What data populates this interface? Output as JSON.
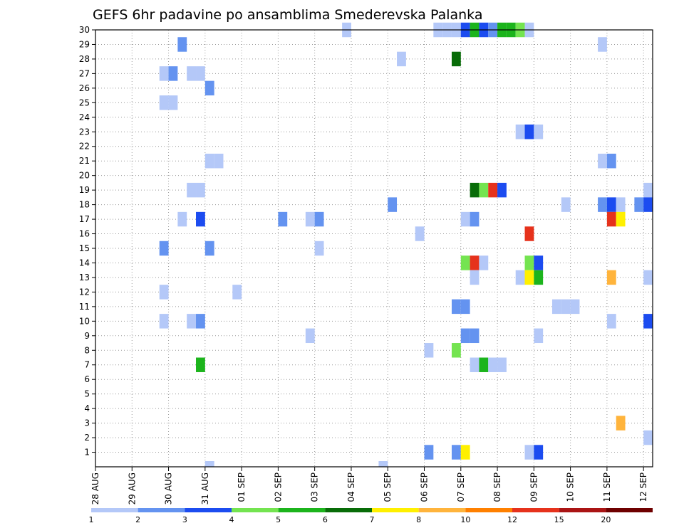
{
  "chart_data": {
    "type": "heatmap",
    "title": "GEFS 6hr padavine po ansamblima Smederevska Palanka",
    "x_tick_labels": [
      "28 AUG",
      "29 AUG",
      "30 AUG",
      "31 AUG",
      "01 SEP",
      "02 SEP",
      "03 SEP",
      "04 SEP",
      "05 SEP",
      "06 SEP",
      "07 SEP",
      "08 SEP",
      "09 SEP",
      "10 SEP",
      "11 SEP",
      "12 SEP"
    ],
    "x_range_days": [
      0,
      15.25
    ],
    "time_step_hours": 6,
    "members": [
      1,
      30
    ],
    "y_ticks": [
      1,
      2,
      3,
      4,
      5,
      6,
      7,
      8,
      9,
      10,
      11,
      12,
      13,
      14,
      15,
      16,
      17,
      18,
      19,
      20,
      21,
      22,
      23,
      24,
      25,
      26,
      27,
      28,
      29,
      30
    ],
    "grid": true,
    "legend": {
      "position": "bottom",
      "labels": [
        "1",
        "2",
        "3",
        "4",
        "5",
        "6",
        "7",
        "8",
        "10",
        "12",
        "15",
        "20"
      ],
      "colors": [
        "#b4c8f8",
        "#6493f0",
        "#1c4cf0",
        "#74e450",
        "#1cb41c",
        "#086c08",
        "#fff000",
        "#ffb43c",
        "#ff8000",
        "#e6321c",
        "#aa1414",
        "#6e0000"
      ]
    },
    "cells": [
      [
        6.75,
        30,
        1
      ],
      [
        9.25,
        30,
        1
      ],
      [
        9.5,
        30,
        1
      ],
      [
        9.75,
        30,
        1
      ],
      [
        10.0,
        30,
        3
      ],
      [
        10.25,
        30,
        5
      ],
      [
        10.5,
        30,
        3
      ],
      [
        10.75,
        30,
        2
      ],
      [
        11.0,
        30,
        5
      ],
      [
        11.25,
        30,
        5
      ],
      [
        11.5,
        30,
        4
      ],
      [
        11.75,
        30,
        1
      ],
      [
        2.25,
        29,
        2
      ],
      [
        13.75,
        29,
        1
      ],
      [
        8.25,
        28,
        1
      ],
      [
        9.75,
        28,
        6
      ],
      [
        1.75,
        27,
        1
      ],
      [
        2.0,
        27,
        2
      ],
      [
        2.5,
        27,
        1
      ],
      [
        2.75,
        27,
        1
      ],
      [
        3.0,
        26,
        2
      ],
      [
        1.75,
        25,
        1
      ],
      [
        2.0,
        25,
        1
      ],
      [
        11.5,
        23,
        1
      ],
      [
        11.75,
        23,
        3
      ],
      [
        12.0,
        23,
        1
      ],
      [
        3.0,
        21,
        1
      ],
      [
        3.25,
        21,
        1
      ],
      [
        13.75,
        21,
        1
      ],
      [
        14.0,
        21,
        2
      ],
      [
        10.25,
        19,
        6
      ],
      [
        10.5,
        19,
        4
      ],
      [
        10.75,
        19,
        10
      ],
      [
        11.0,
        19,
        3
      ],
      [
        15.0,
        19,
        1
      ],
      [
        2.5,
        19,
        1
      ],
      [
        2.75,
        19,
        1
      ],
      [
        8.0,
        18,
        2
      ],
      [
        12.75,
        18,
        1
      ],
      [
        13.75,
        18,
        2
      ],
      [
        14.0,
        18,
        3
      ],
      [
        14.25,
        18,
        1
      ],
      [
        14.75,
        18,
        2
      ],
      [
        15.0,
        18,
        3
      ],
      [
        2.25,
        17,
        1
      ],
      [
        2.75,
        17,
        3
      ],
      [
        5.0,
        17,
        2
      ],
      [
        5.75,
        17,
        1
      ],
      [
        6.0,
        17,
        2
      ],
      [
        10.0,
        17,
        1
      ],
      [
        10.25,
        17,
        2
      ],
      [
        14.0,
        17,
        10
      ],
      [
        14.25,
        17,
        7
      ],
      [
        8.75,
        16,
        1
      ],
      [
        11.75,
        16,
        10
      ],
      [
        1.75,
        15,
        2
      ],
      [
        3.0,
        15,
        2
      ],
      [
        6.0,
        15,
        1
      ],
      [
        10.0,
        14,
        4
      ],
      [
        10.25,
        14,
        10
      ],
      [
        10.5,
        14,
        1
      ],
      [
        11.75,
        14,
        4
      ],
      [
        12.0,
        14,
        3
      ],
      [
        10.25,
        13,
        1
      ],
      [
        11.5,
        13,
        1
      ],
      [
        11.75,
        13,
        7
      ],
      [
        12.0,
        13,
        5
      ],
      [
        14.0,
        13,
        8
      ],
      [
        15.0,
        13,
        1
      ],
      [
        1.75,
        12,
        1
      ],
      [
        3.75,
        12,
        1
      ],
      [
        9.75,
        11,
        2
      ],
      [
        10.0,
        11,
        2
      ],
      [
        12.5,
        11,
        1
      ],
      [
        12.75,
        11,
        1
      ],
      [
        13.0,
        11,
        1
      ],
      [
        1.75,
        10,
        1
      ],
      [
        2.5,
        10,
        1
      ],
      [
        2.75,
        10,
        2
      ],
      [
        14.0,
        10,
        1
      ],
      [
        15.0,
        10,
        3
      ],
      [
        5.75,
        9,
        1
      ],
      [
        10.0,
        9,
        2
      ],
      [
        10.25,
        9,
        2
      ],
      [
        12.0,
        9,
        1
      ],
      [
        9.75,
        8,
        4
      ],
      [
        9.0,
        8,
        1
      ],
      [
        2.75,
        7,
        5
      ],
      [
        10.25,
        7,
        1
      ],
      [
        10.5,
        7,
        5
      ],
      [
        10.75,
        7,
        1
      ],
      [
        11.0,
        7,
        1
      ],
      [
        14.25,
        3,
        8
      ],
      [
        15.0,
        2,
        1
      ],
      [
        9.0,
        1,
        2
      ],
      [
        9.75,
        1,
        2
      ],
      [
        10.0,
        1,
        7
      ],
      [
        11.75,
        1,
        1
      ],
      [
        12.0,
        1,
        3
      ],
      [
        3.0,
        0,
        1
      ],
      [
        7.75,
        0,
        1
      ]
    ]
  }
}
